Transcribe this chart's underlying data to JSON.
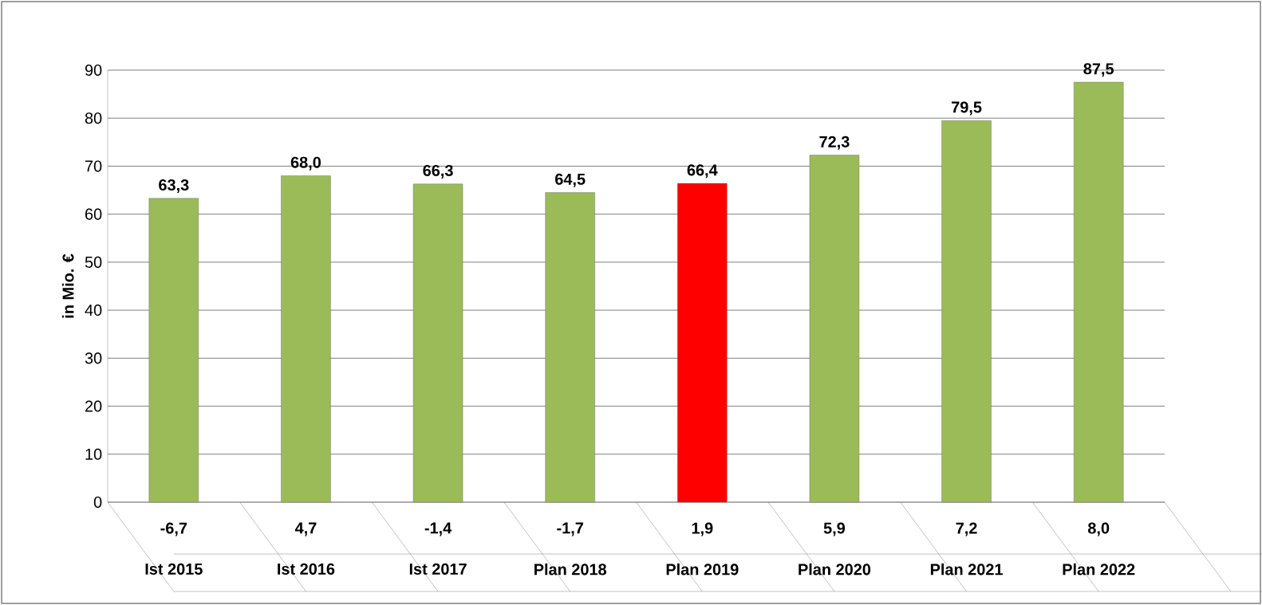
{
  "chart_data": {
    "type": "bar",
    "ylabel": "in Mio. €",
    "categories": [
      "Ist 2015",
      "Ist 2016",
      "Ist 2017",
      "Plan 2018",
      "Plan 2019",
      "Plan 2020",
      "Plan 2021",
      "Plan 2022"
    ],
    "values": [
      63.3,
      68.0,
      66.3,
      64.5,
      66.4,
      72.3,
      79.5,
      87.5
    ],
    "value_labels": [
      "63,3",
      "68,0",
      "66,3",
      "64,5",
      "66,4",
      "72,3",
      "79,5",
      "87,5"
    ],
    "colors": [
      "#9bbb59",
      "#9bbb59",
      "#9bbb59",
      "#9bbb59",
      "#ff0000",
      "#9bbb59",
      "#9bbb59",
      "#9bbb59"
    ],
    "annotations": [
      "-6,7",
      "4,7",
      "-1,4",
      "-1,7",
      "1,9",
      "5,9",
      "7,2",
      "8,0"
    ],
    "ylim": [
      0,
      90
    ],
    "yticks": [
      0,
      10,
      20,
      30,
      40,
      50,
      60,
      70,
      80,
      90
    ],
    "grid": "y"
  }
}
